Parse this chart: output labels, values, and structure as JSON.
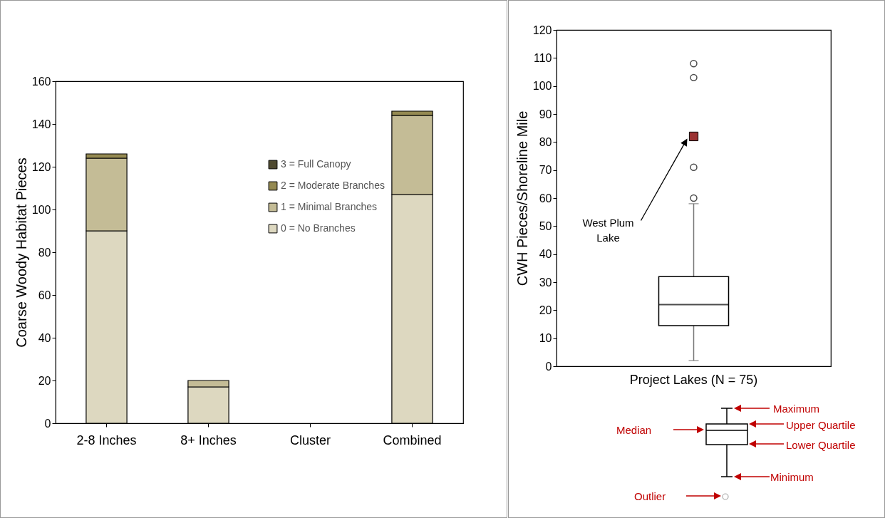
{
  "chart_data": [
    {
      "type": "bar",
      "stacked": true,
      "ylabel": "Coarse Woody Habitat Pieces",
      "categories": [
        "2-8 Inches",
        "8+ Inches",
        "Cluster",
        "Combined"
      ],
      "series": [
        {
          "name": "0 = No Branches",
          "color": "#ddd8c0",
          "values": [
            90,
            17,
            0,
            107
          ]
        },
        {
          "name": "1 = Minimal Branches",
          "color": "#c4bc96",
          "values": [
            34,
            3,
            0,
            37
          ]
        },
        {
          "name": "2 = Moderate Branches",
          "color": "#958a52",
          "values": [
            2,
            0,
            0,
            2
          ]
        },
        {
          "name": "3 = Full Canopy",
          "color": "#4f4a30",
          "values": [
            0,
            0,
            0,
            0
          ]
        }
      ],
      "ylim": [
        0,
        160
      ],
      "yticks": [
        0,
        20,
        40,
        60,
        80,
        100,
        120,
        140,
        160
      ],
      "grid": false,
      "legend": "top right"
    },
    {
      "type": "box",
      "ylabel": "CWH Pieces/Shoreline Mile",
      "categories": [
        "Project Lakes (N = 75)"
      ],
      "boxes": [
        {
          "low": 2,
          "q1": 14.5,
          "median": 22,
          "q3": 32,
          "high": 58,
          "outliers": [
            60,
            71,
            103,
            108
          ]
        }
      ],
      "series": [
        {
          "type": "scatter",
          "x": [
            "Project Lakes (N = 75)"
          ],
          "values": [
            82
          ],
          "color": "#9b3232",
          "marker": "square"
        }
      ],
      "ylim": [
        0,
        120
      ],
      "yticks": [
        0,
        10,
        20,
        30,
        40,
        50,
        60,
        70,
        80,
        90,
        100,
        110,
        120
      ],
      "grid": false,
      "annotations": [
        "West Plum Lake",
        "Maximum",
        "Upper Quartile",
        "Median",
        "Lower Quartile",
        "Minimum",
        "Outlier"
      ]
    }
  ]
}
